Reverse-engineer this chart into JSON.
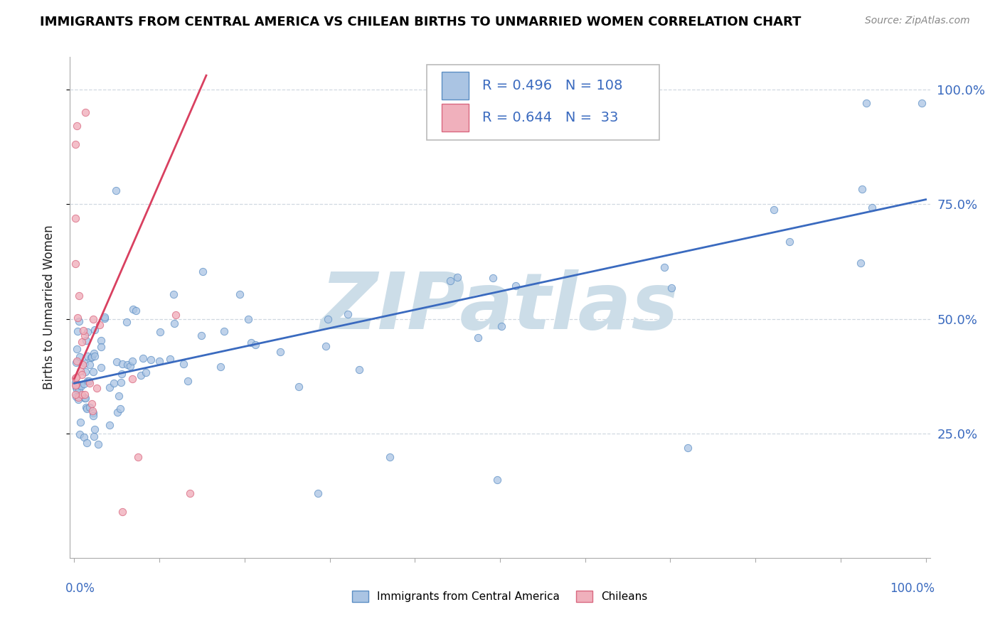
{
  "title": "IMMIGRANTS FROM CENTRAL AMERICA VS CHILEAN BIRTHS TO UNMARRIED WOMEN CORRELATION CHART",
  "source": "Source: ZipAtlas.com",
  "ylabel": "Births to Unmarried Women",
  "ytick_values": [
    0.25,
    0.5,
    0.75,
    1.0
  ],
  "ytick_labels": [
    "25.0%",
    "50.0%",
    "75.0%",
    "100.0%"
  ],
  "legend_blue_R": 0.496,
  "legend_blue_N": 108,
  "legend_pink_R": 0.644,
  "legend_pink_N": 33,
  "label_blue": "Immigrants from Central America",
  "label_pink": "Chileans",
  "blue_fill": "#aac4e3",
  "blue_edge": "#5b8ec4",
  "pink_fill": "#f0b0bc",
  "pink_edge": "#d96880",
  "trend_blue": "#3a6abf",
  "trend_pink": "#d94060",
  "watermark": "ZIPatlas",
  "watermark_color": "#ccdde8",
  "text_blue": "#3a6abf",
  "xmin": 0.0,
  "xmax": 1.0,
  "ymin": 0.0,
  "ymax": 1.05
}
